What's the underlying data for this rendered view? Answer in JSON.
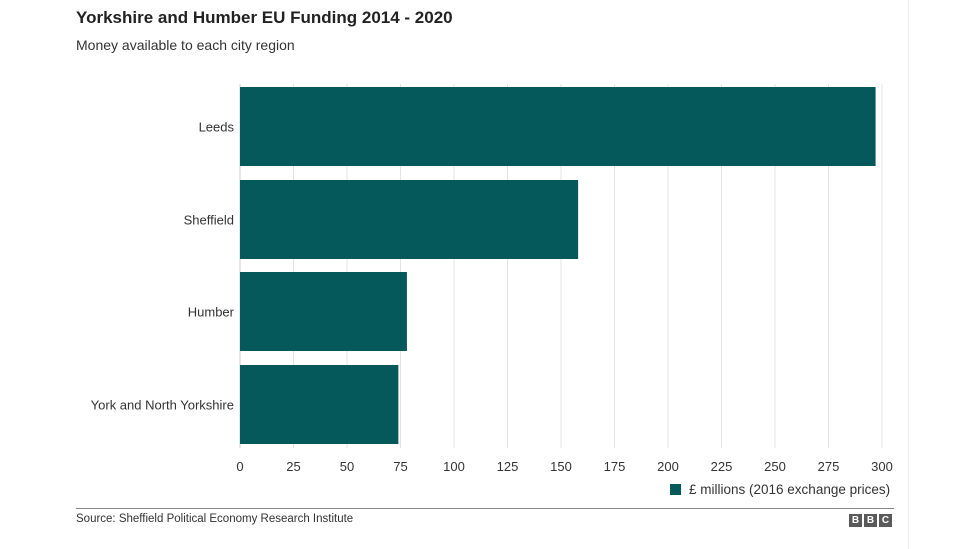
{
  "chart_data": {
    "type": "bar",
    "orientation": "horizontal",
    "title": "Yorkshire and Humber EU Funding 2014 - 2020",
    "subtitle": "Money available to each city region",
    "categories": [
      "Leeds",
      "Sheffield",
      "Humber",
      "York and North Yorkshire"
    ],
    "series": [
      {
        "name": "£ millions (2016 exchange prices)",
        "values": [
          297,
          158,
          78,
          74
        ]
      }
    ],
    "xlim": [
      0,
      300
    ],
    "xticks": [
      "0",
      "25",
      "50",
      "75",
      "100",
      "125",
      "150",
      "175",
      "200",
      "225",
      "250",
      "275",
      "300"
    ],
    "xlabel": "",
    "ylabel": "",
    "grid": true,
    "legend_position": "bottom-right",
    "bar_color": "#05595b"
  },
  "source": "Source: Sheffield Political Economy Research Institute",
  "logo": {
    "letters": [
      "B",
      "B",
      "C"
    ]
  }
}
